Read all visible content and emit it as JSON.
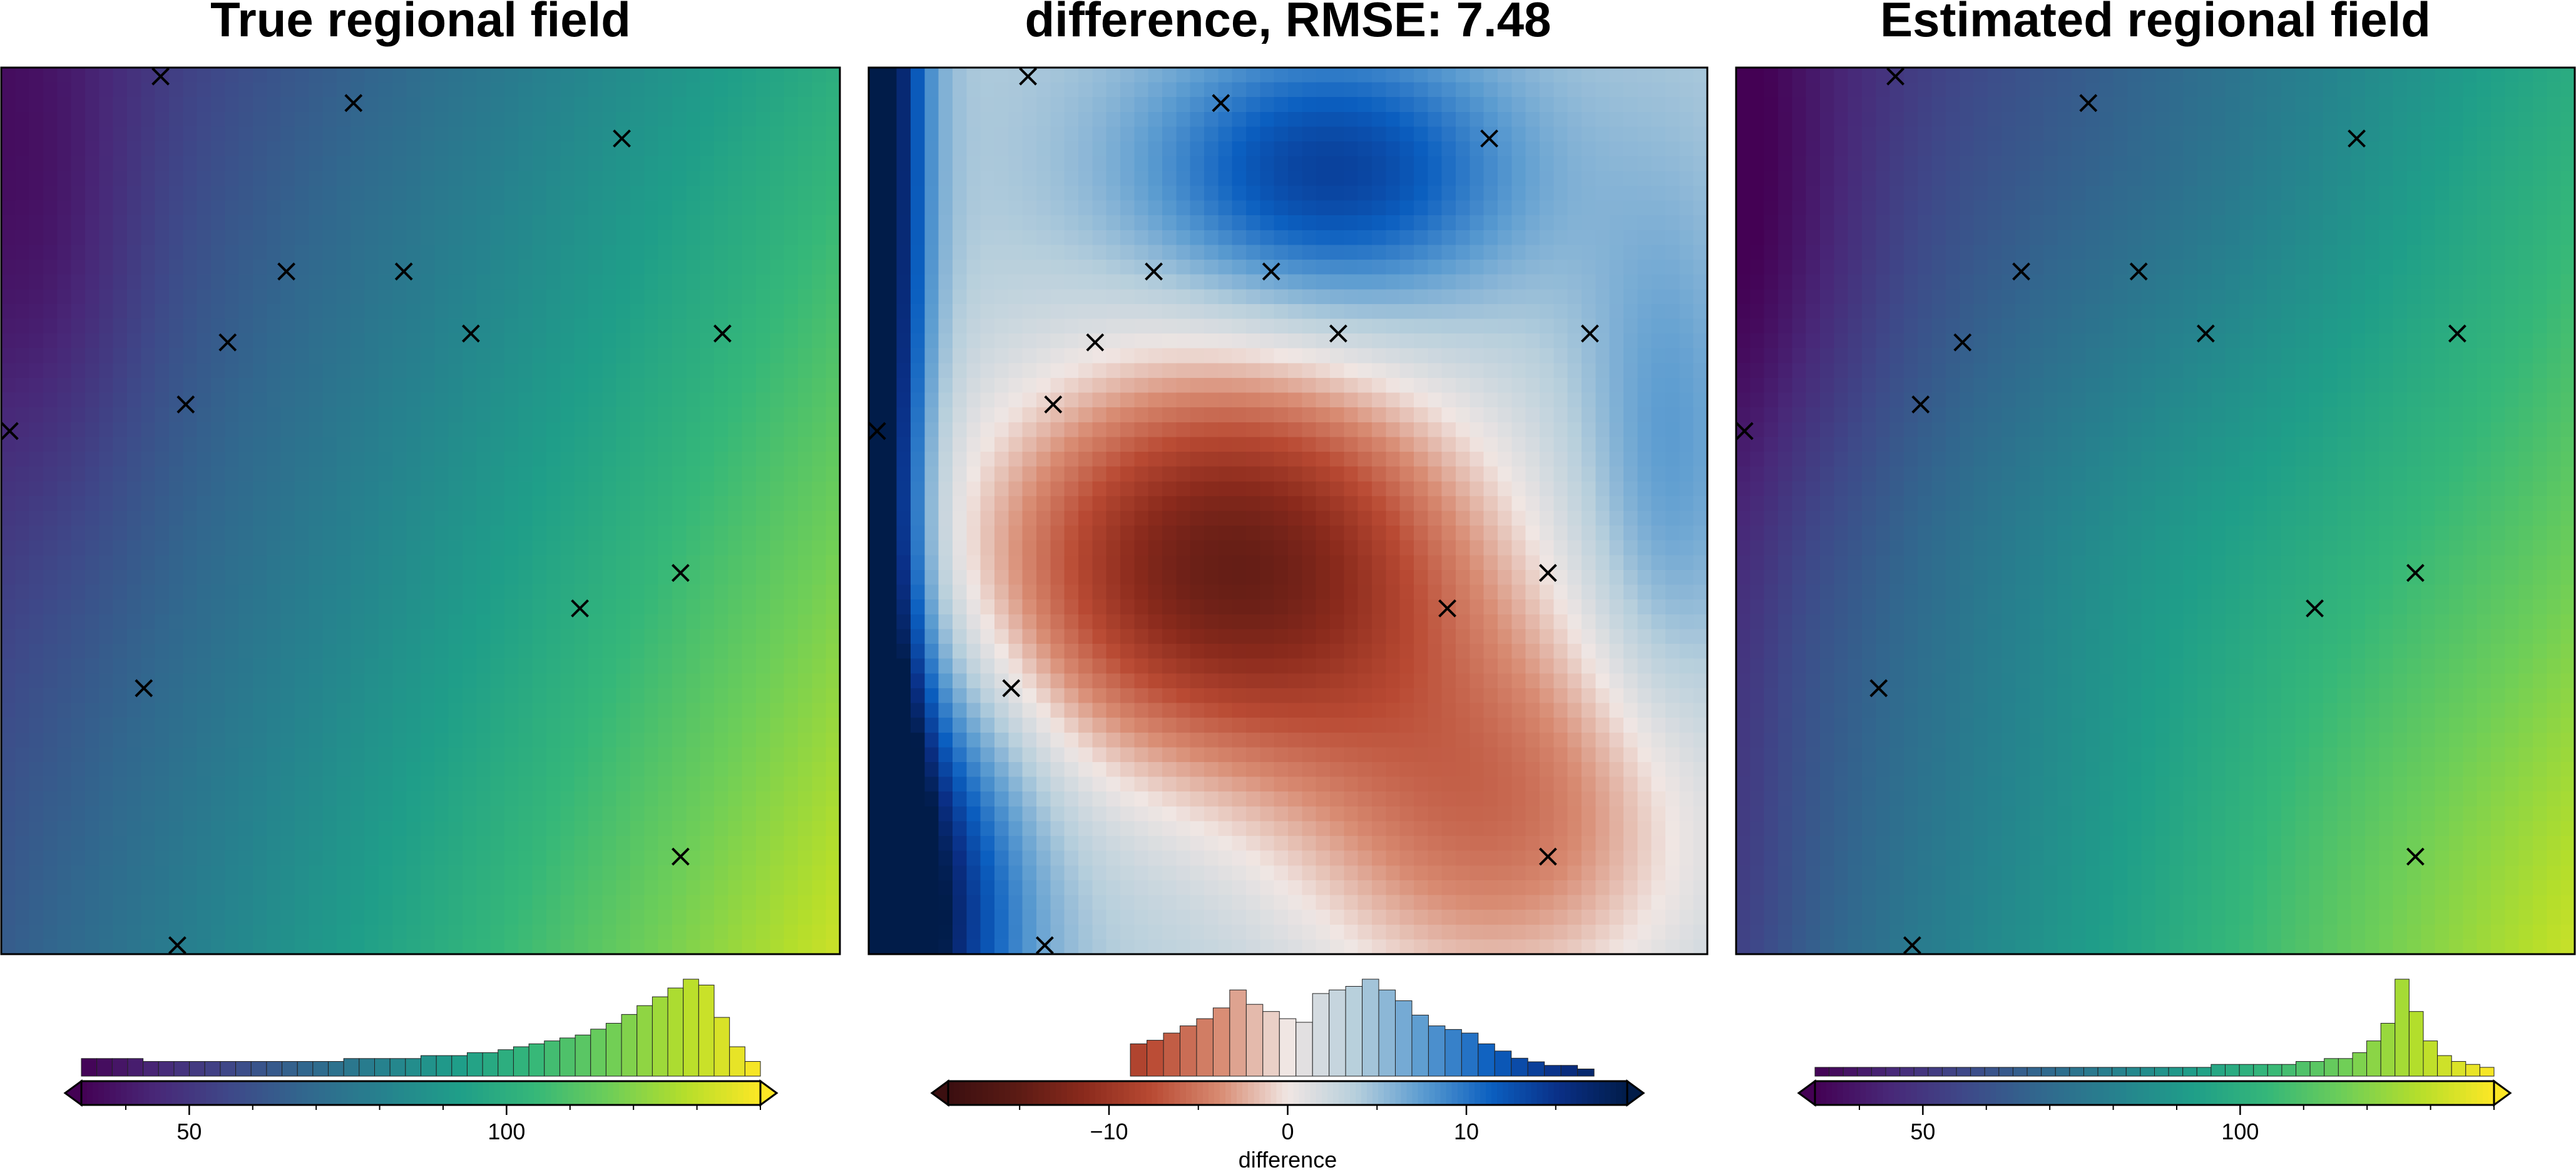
{
  "panels": [
    {
      "title": "True regional field",
      "colormap": "viridis",
      "field": "true"
    },
    {
      "title": "difference, RMSE: 7.48",
      "colormap": "vik",
      "field": "difference"
    },
    {
      "title": "Estimated regional field",
      "colormap": "viridis",
      "field": "estimated"
    }
  ],
  "colormaps": {
    "viridis": [
      "#440154",
      "#482878",
      "#3e4989",
      "#31688e",
      "#26828e",
      "#1f9e89",
      "#35b779",
      "#6ece58",
      "#b5de2b",
      "#fde725"
    ],
    "vik": [
      "#3b0f10",
      "#5a1a14",
      "#8a2a1c",
      "#b94a33",
      "#d88b72",
      "#f0e6e3",
      "#b7cfdc",
      "#5a9bd0",
      "#0b5fc0",
      "#0a2f86",
      "#011c49"
    ]
  },
  "colorbars": [
    {
      "range": [
        33,
        140
      ],
      "ticks": [
        {
          "value": 50,
          "label": "50"
        },
        {
          "value": 100,
          "label": "100"
        }
      ],
      "label": "",
      "histogram": [
        6,
        6,
        6,
        6,
        5,
        5,
        5,
        5,
        5,
        5,
        5,
        5,
        5,
        5,
        5,
        5,
        5,
        6,
        6,
        6,
        6,
        6,
        7,
        7,
        7,
        8,
        8,
        9,
        10,
        11,
        12,
        13,
        14,
        16,
        18,
        21,
        24,
        27,
        30,
        33,
        31,
        20,
        10,
        5
      ]
    },
    {
      "range": [
        -19,
        19
      ],
      "ticks": [
        {
          "value": -10,
          "label": "−10"
        },
        {
          "value": 0,
          "label": "0"
        },
        {
          "value": 10,
          "label": "10"
        }
      ],
      "label": "difference",
      "histogram": [
        0,
        0,
        0,
        0,
        0,
        0,
        0,
        0,
        0,
        0,
        0,
        9,
        10,
        12,
        14,
        16,
        19,
        24,
        20,
        18,
        16,
        15,
        23,
        24,
        25,
        27,
        24,
        21,
        17,
        14,
        13,
        12,
        9,
        7,
        5,
        4,
        3,
        3,
        2,
        0,
        0
      ]
    },
    {
      "range": [
        33,
        140
      ],
      "ticks": [
        {
          "value": 50,
          "label": "50"
        },
        {
          "value": 100,
          "label": "100"
        }
      ],
      "label": "",
      "histogram": [
        3,
        3,
        3,
        3,
        3,
        3,
        3,
        3,
        3,
        3,
        3,
        3,
        3,
        3,
        3,
        3,
        3,
        3,
        3,
        3,
        3,
        3,
        3,
        3,
        3,
        3,
        3,
        3,
        4,
        4,
        4,
        4,
        4,
        4,
        5,
        5,
        6,
        6,
        8,
        12,
        18,
        33,
        22,
        12,
        7,
        5,
        4,
        3
      ]
    }
  ],
  "chart_data": [
    {
      "type": "heatmap",
      "title": "True regional field",
      "colormap": "viridis",
      "value_range": [
        33,
        140
      ],
      "grid": {
        "nx": 60,
        "ny": 60
      },
      "points": [
        [
          0.19,
          0.99
        ],
        [
          0.42,
          0.96
        ],
        [
          0.74,
          0.92
        ],
        [
          0.34,
          0.77
        ],
        [
          0.48,
          0.77
        ],
        [
          0.56,
          0.7
        ],
        [
          0.86,
          0.7
        ],
        [
          0.27,
          0.69
        ],
        [
          0.22,
          0.62
        ],
        [
          0.01,
          0.59
        ],
        [
          0.81,
          0.43
        ],
        [
          0.69,
          0.39
        ],
        [
          0.17,
          0.3
        ],
        [
          0.81,
          0.11
        ],
        [
          0.21,
          0.01
        ]
      ]
    },
    {
      "type": "heatmap",
      "title": "difference, RMSE: 7.48",
      "colormap": "vik",
      "value_range": [
        -19,
        19
      ],
      "colorbar_label": "difference",
      "grid": {
        "nx": 60,
        "ny": 60
      },
      "points": [
        [
          0.19,
          0.99
        ],
        [
          0.42,
          0.96
        ],
        [
          0.74,
          0.92
        ],
        [
          0.34,
          0.77
        ],
        [
          0.48,
          0.77
        ],
        [
          0.56,
          0.7
        ],
        [
          0.86,
          0.7
        ],
        [
          0.27,
          0.69
        ],
        [
          0.22,
          0.62
        ],
        [
          0.01,
          0.59
        ],
        [
          0.81,
          0.43
        ],
        [
          0.69,
          0.39
        ],
        [
          0.17,
          0.3
        ],
        [
          0.81,
          0.11
        ],
        [
          0.21,
          0.01
        ]
      ]
    },
    {
      "type": "heatmap",
      "title": "Estimated regional field",
      "colormap": "viridis",
      "value_range": [
        33,
        140
      ],
      "grid": {
        "nx": 60,
        "ny": 60
      },
      "points": [
        [
          0.19,
          0.99
        ],
        [
          0.42,
          0.96
        ],
        [
          0.74,
          0.92
        ],
        [
          0.34,
          0.77
        ],
        [
          0.48,
          0.77
        ],
        [
          0.56,
          0.7
        ],
        [
          0.86,
          0.7
        ],
        [
          0.27,
          0.69
        ],
        [
          0.22,
          0.62
        ],
        [
          0.01,
          0.59
        ],
        [
          0.81,
          0.43
        ],
        [
          0.69,
          0.39
        ],
        [
          0.17,
          0.3
        ],
        [
          0.81,
          0.11
        ],
        [
          0.21,
          0.01
        ]
      ]
    }
  ]
}
